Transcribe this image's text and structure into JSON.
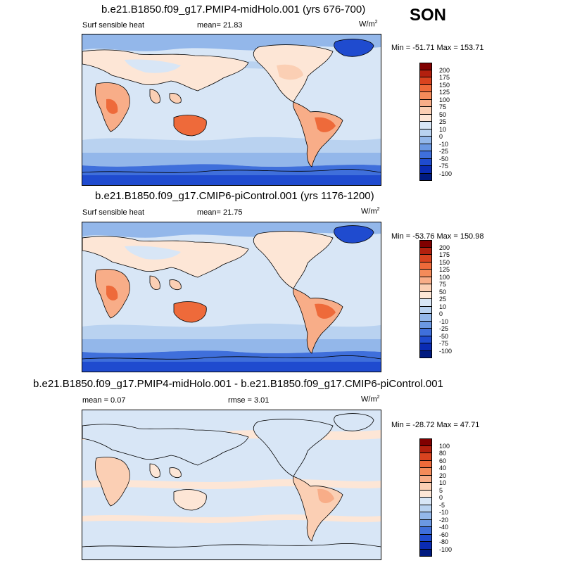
{
  "season": "SON",
  "panels": [
    {
      "id": "midholo",
      "title": "b.e21.B1850.f09_g17.PMIP4-midHolo.001 (yrs 676-700)",
      "left_label": "Surf sensible heat",
      "mid_label": "mean=  21.83",
      "unit": "W/m",
      "unit_sup": "2",
      "minmax": "Min = -51.71 Max = 153.71",
      "levels": [
        "200",
        "175",
        "150",
        "125",
        "100",
        "75",
        "50",
        "25",
        "10",
        "0",
        "-10",
        "-25",
        "-50",
        "-75",
        "-100"
      ],
      "colors": [
        "#800000",
        "#b3200e",
        "#d9431f",
        "#ee6a3a",
        "#f48b5a",
        "#f8ad88",
        "#fbcfb4",
        "#fde6d6",
        "#d8e6f6",
        "#b9d2f0",
        "#93b7ea",
        "#6b98e3",
        "#3f6fdb",
        "#1f4bcf",
        "#0a2bb3",
        "#001a80"
      ]
    },
    {
      "id": "picontrol",
      "title": "b.e21.B1850.f09_g17.CMIP6-piControl.001 (yrs 1176-1200)",
      "left_label": "Surf sensible heat",
      "mid_label": "mean=  21.75",
      "unit": "W/m",
      "unit_sup": "2",
      "minmax": "Min = -53.76 Max = 150.98",
      "levels": [
        "200",
        "175",
        "150",
        "125",
        "100",
        "75",
        "50",
        "25",
        "10",
        "0",
        "-10",
        "-25",
        "-50",
        "-75",
        "-100"
      ],
      "colors": [
        "#800000",
        "#b3200e",
        "#d9431f",
        "#ee6a3a",
        "#f48b5a",
        "#f8ad88",
        "#fbcfb4",
        "#fde6d6",
        "#d8e6f6",
        "#b9d2f0",
        "#93b7ea",
        "#6b98e3",
        "#3f6fdb",
        "#1f4bcf",
        "#0a2bb3",
        "#001a80"
      ]
    },
    {
      "id": "difference",
      "title": "b.e21.B1850.f09_g17.PMIP4-midHolo.001 - b.e21.B1850.f09_g17.CMIP6-piControl.001",
      "left_label": "mean =   0.07",
      "mid_label": "rmse =   3.01",
      "unit": "W/m",
      "unit_sup": "2",
      "minmax": "Min = -28.72 Max =  47.71",
      "levels": [
        "100",
        "80",
        "60",
        "40",
        "20",
        "10",
        "5",
        "0",
        "-5",
        "-10",
        "-20",
        "-40",
        "-60",
        "-80",
        "-100"
      ],
      "colors": [
        "#800000",
        "#b3200e",
        "#d9431f",
        "#ee6a3a",
        "#f48b5a",
        "#f8ad88",
        "#fbcfb4",
        "#fde6d6",
        "#d8e6f6",
        "#b9d2f0",
        "#93b7ea",
        "#6b98e3",
        "#3f6fdb",
        "#1f4bcf",
        "#0a2bb3",
        "#001a80"
      ]
    }
  ]
}
